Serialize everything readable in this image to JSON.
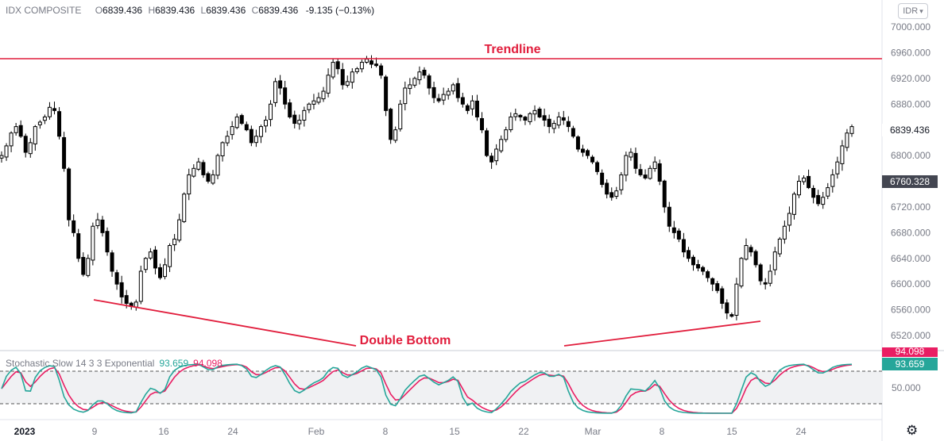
{
  "header": {
    "symbol": "IDX COMPOSITE",
    "open_key": "O",
    "open": "6839.436",
    "high_key": "H",
    "high": "6839.436",
    "low_key": "L",
    "low": "6839.436",
    "close_key": "C",
    "close": "6839.436",
    "change": "-9.135 (−0.13%)"
  },
  "currency_button": "IDR",
  "price_tags": {
    "last": "6839.436",
    "dark": "6760.328",
    "stoch_pink": "94.098",
    "stoch_green": "93.659"
  },
  "annotations": {
    "trendline": "Trendline",
    "double_bottom": "Double Bottom"
  },
  "stochastic": {
    "name": "Stochastic Slow 14 3 3 Exponential",
    "k_value": "93.659",
    "d_value": "94.098",
    "axis_label": "50.000",
    "upper_band": 80,
    "lower_band": 20
  },
  "colors": {
    "candle": "#000000",
    "annotation": "#e11d3c",
    "stoch_k": "#26a69a",
    "stoch_d": "#e91e63",
    "band_fill": "#f0f1f3"
  },
  "chart_data": {
    "type": "candlestick",
    "y_ticks": [
      "7000.000",
      "6960.000",
      "6920.000",
      "6880.000",
      "6840.000",
      "6800.000",
      "6760.000",
      "6720.000",
      "6680.000",
      "6640.000",
      "6600.000",
      "6560.000",
      "6520.000"
    ],
    "ylim": [
      6500,
      7010
    ],
    "x_ticks": [
      "2023",
      "9",
      "16",
      "24",
      "Feb",
      "8",
      "15",
      "22",
      "Mar",
      "8",
      "15",
      "24"
    ],
    "trendline_level": 6953,
    "closes": [
      6800,
      6815,
      6835,
      6845,
      6830,
      6805,
      6820,
      6845,
      6852,
      6860,
      6875,
      6870,
      6830,
      6780,
      6700,
      6680,
      6640,
      6615,
      6640,
      6690,
      6700,
      6680,
      6650,
      6620,
      6600,
      6580,
      6570,
      6565,
      6572,
      6620,
      6640,
      6650,
      6625,
      6610,
      6630,
      6660,
      6670,
      6700,
      6740,
      6770,
      6780,
      6790,
      6770,
      6760,
      6770,
      6800,
      6820,
      6830,
      6845,
      6860,
      6850,
      6840,
      6820,
      6830,
      6845,
      6855,
      6880,
      6915,
      6905,
      6880,
      6860,
      6850,
      6855,
      6870,
      6880,
      6885,
      6890,
      6900,
      6925,
      6945,
      6935,
      6910,
      6915,
      6930,
      6935,
      6945,
      6950,
      6942,
      6940,
      6925,
      6870,
      6825,
      6840,
      6880,
      6905,
      6910,
      6920,
      6930,
      6925,
      6905,
      6890,
      6885,
      6895,
      6900,
      6910,
      6890,
      6880,
      6870,
      6885,
      6860,
      6840,
      6800,
      6790,
      6810,
      6825,
      6840,
      6860,
      6865,
      6860,
      6855,
      6865,
      6870,
      6860,
      6855,
      6845,
      6850,
      6860,
      6855,
      6845,
      6830,
      6810,
      6805,
      6800,
      6790,
      6775,
      6755,
      6740,
      6735,
      6745,
      6770,
      6800,
      6805,
      6780,
      6770,
      6765,
      6780,
      6790,
      6760,
      6720,
      6690,
      6680,
      6670,
      6650,
      6640,
      6630,
      6625,
      6620,
      6610,
      6600,
      6590,
      6570,
      6555,
      6550,
      6600,
      6640,
      6660,
      6650,
      6630,
      6605,
      6600,
      6620,
      6650,
      6670,
      6690,
      6710,
      6740,
      6760,
      6765,
      6750,
      6735,
      6725,
      6735,
      6750,
      6770,
      6790,
      6815,
      6835,
      6845
    ]
  }
}
